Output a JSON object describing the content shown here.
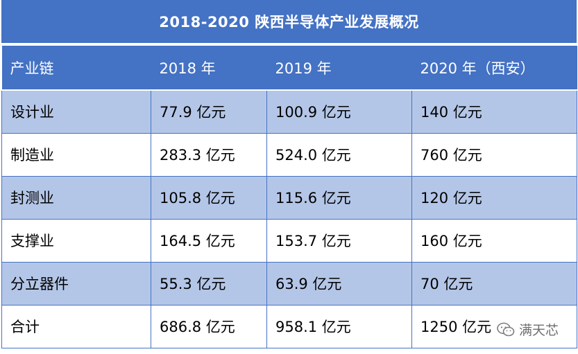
{
  "title": "2018-2020 陕西半导体产业发展概况",
  "table": {
    "headers": [
      "产业链",
      "2018 年",
      "2019 年",
      "2020 年（西安）"
    ],
    "rows": [
      [
        "设计业",
        "77.9 亿元",
        "100.9 亿元",
        "140 亿元"
      ],
      [
        "制造业",
        "283.3 亿元",
        "524.0 亿元",
        "760 亿元"
      ],
      [
        "封测业",
        "105.8 亿元",
        "115.6 亿元",
        "120 亿元"
      ],
      [
        "支撑业",
        "164.5 亿元",
        "153.7 亿元",
        "160 亿元"
      ],
      [
        "分立器件",
        "55.3 亿元",
        "63.9 亿元",
        "70 亿元"
      ],
      [
        "合计",
        "686.8 亿元",
        "958.1 亿元",
        "1250 亿元"
      ]
    ]
  },
  "watermark": {
    "text": "满天芯",
    "icon": "wechat-icon"
  },
  "colors": {
    "header_bg": "#4472c4",
    "band_bg": "#b4c6e7",
    "header_text": "#ffffff"
  }
}
